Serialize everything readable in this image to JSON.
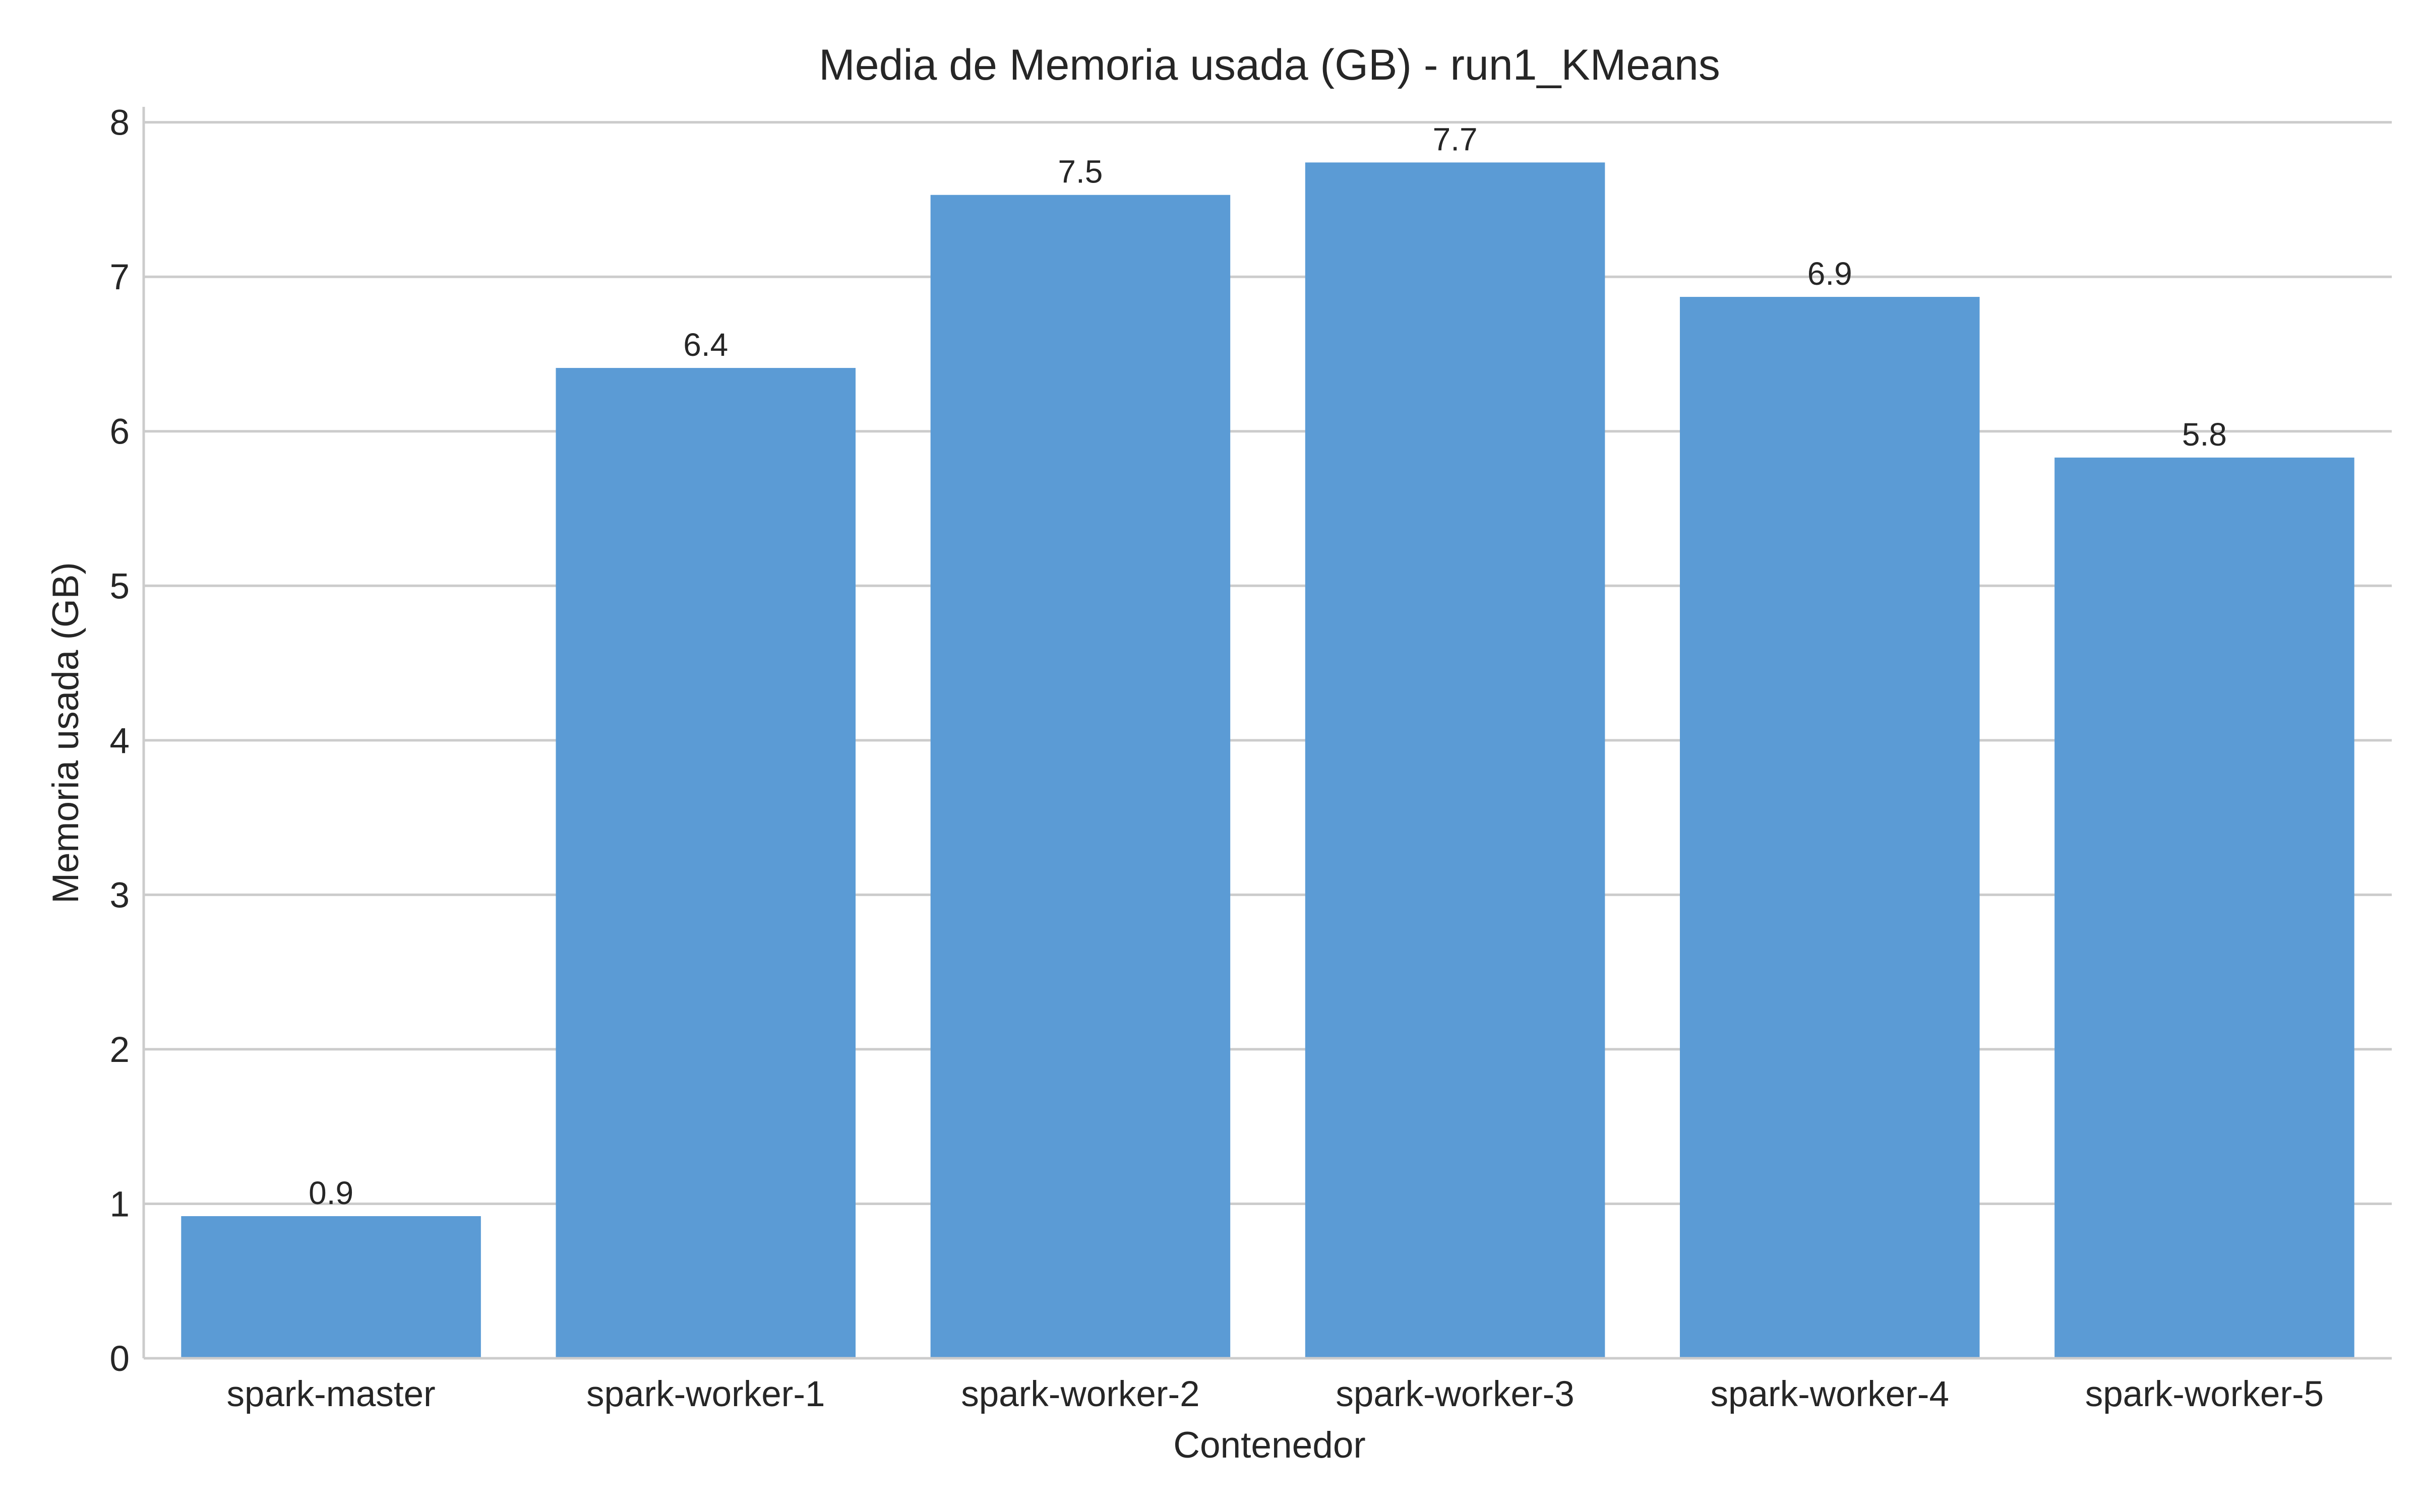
{
  "chart_data": {
    "type": "bar",
    "title": "Media de Memoria usada (GB) - run1_KMeans",
    "xlabel": "Contenedor",
    "ylabel": "Memoria usada (GB)",
    "categories": [
      "spark-master",
      "spark-worker-1",
      "spark-worker-2",
      "spark-worker-3",
      "spark-worker-4",
      "spark-worker-5"
    ],
    "values": [
      0.92,
      6.41,
      7.53,
      7.74,
      6.87,
      5.83
    ],
    "data_labels": [
      "0.9",
      "6.4",
      "7.5",
      "7.7",
      "6.9",
      "5.8"
    ],
    "ylim": [
      0,
      8.1
    ],
    "yticks": [
      0,
      1,
      2,
      3,
      4,
      5,
      6,
      7,
      8
    ],
    "ytick_labels": [
      "0",
      "1",
      "2",
      "3",
      "4",
      "5",
      "6",
      "7",
      "8"
    ],
    "grid": "horizontal",
    "bar_color": "#5b9bd5"
  }
}
